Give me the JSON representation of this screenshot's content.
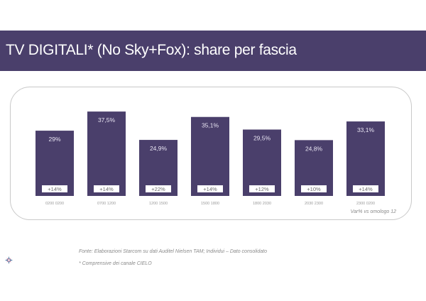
{
  "header": {
    "title": "TV DIGITALI* (No Sky+Fox): share per fascia"
  },
  "footer": {
    "source": "Fonte: Elaborazioni Starcom su dati Auditel Nielsen TAM; Individui – Dato consolidato",
    "note": "* Comprensive dei canale CIELO"
  },
  "colors": {
    "bar": "#4a3f6b",
    "header": "#4a3f6b",
    "frame": "#c9c9c9"
  },
  "logo_icon": "star-logo-icon",
  "chart_data": {
    "type": "bar",
    "categories": [
      "0200 0200",
      "0700 1200",
      "1200 1500",
      "1500 1800",
      "1800 2030",
      "2030 2300",
      "2300 0200"
    ],
    "values": [
      29,
      37.5,
      24.9,
      35.1,
      29.5,
      24.8,
      33.1
    ],
    "value_labels": [
      "29%",
      "37,5%",
      "24,9%",
      "35,1%",
      "29,5%",
      "24,8%",
      "33,1%"
    ],
    "variation_labels": [
      "+14%",
      "+14%",
      "+22%",
      "+14%",
      "+12%",
      "+10%",
      "+14%"
    ],
    "variation_caption": "Var% vs omologo 12",
    "title": "",
    "xlabel": "",
    "ylabel": "",
    "ylim": [
      0,
      40
    ],
    "grid": false,
    "legend": "none"
  }
}
